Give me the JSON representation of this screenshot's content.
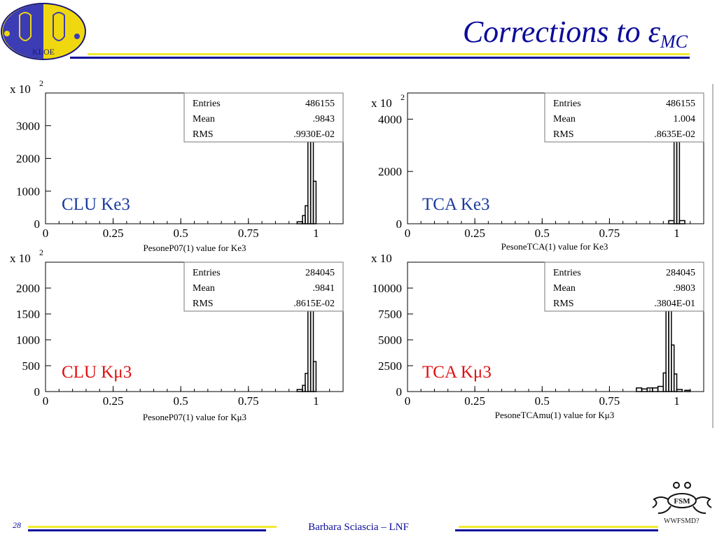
{
  "slide": {
    "title_main": "Corrections to ",
    "title_symbol": "ε",
    "title_sub": "MC",
    "author": "Barbara Sciascia – LNF",
    "page_number": "28",
    "fsm_badge": "WWFSMD?",
    "fsm_logo_text": "FSM",
    "logo_text": "KLOE"
  },
  "colors": {
    "title": "#0b0b9a",
    "ke3_label": "#1a3aa0",
    "kmu3_label": "#e01010"
  },
  "chart_data": [
    {
      "type": "histogram",
      "panel_label": "CLU Ke3",
      "xlabel": "PesoneP07(1) value for Ke3",
      "ylabel": "",
      "scale_label": "x 10",
      "scale_exp": "2",
      "xlim": [
        0,
        1.1
      ],
      "ylim": [
        0,
        4000
      ],
      "xticks": [
        0,
        0.25,
        0.5,
        0.75,
        1
      ],
      "xtick_labels": [
        "0",
        "0.25",
        "0.5",
        "0.75",
        "1"
      ],
      "yticks": [
        0,
        1000,
        2000,
        3000
      ],
      "ytick_labels": [
        "0",
        "1000",
        "2000",
        "3000"
      ],
      "bins": [
        [
          0.93,
          0.95,
          60
        ],
        [
          0.95,
          0.96,
          250
        ],
        [
          0.96,
          0.97,
          550
        ],
        [
          0.97,
          0.98,
          2550
        ],
        [
          0.98,
          0.99,
          2600
        ],
        [
          0.99,
          1.0,
          1300
        ]
      ],
      "stats": [
        [
          "Entries",
          "486155"
        ],
        [
          "Mean",
          ".9843"
        ],
        [
          "RMS",
          ".9930E-02"
        ]
      ]
    },
    {
      "type": "histogram",
      "panel_label": "TCA Ke3",
      "xlabel": "PesoneTCA(1) value for Ke3",
      "ylabel": "",
      "scale_label": "x 10",
      "scale_exp": "2",
      "xlim": [
        0,
        1.1
      ],
      "ylim": [
        0,
        5000
      ],
      "xticks": [
        0,
        0.25,
        0.5,
        0.75,
        1
      ],
      "xtick_labels": [
        "0",
        "0.25",
        "0.5",
        "0.75",
        "1"
      ],
      "yticks": [
        0,
        2000,
        4000
      ],
      "ytick_labels": [
        "0",
        "2000",
        "4000"
      ],
      "bins": [
        [
          0.97,
          0.99,
          120
        ],
        [
          0.99,
          1.0,
          3900
        ],
        [
          1.0,
          1.01,
          3900
        ],
        [
          1.01,
          1.03,
          120
        ]
      ],
      "stats": [
        [
          "Entries",
          "486155"
        ],
        [
          "Mean",
          "1.004"
        ],
        [
          "RMS",
          ".8635E-02"
        ]
      ]
    },
    {
      "type": "histogram",
      "panel_label": "CLU Kμ3",
      "xlabel": "PesoneP07(1) value for Kμ3",
      "ylabel": "",
      "scale_label": "x 10",
      "scale_exp": "2",
      "xlim": [
        0,
        1.1
      ],
      "ylim": [
        0,
        2500
      ],
      "xticks": [
        0,
        0.25,
        0.5,
        0.75,
        1
      ],
      "xtick_labels": [
        "0",
        "0.25",
        "0.5",
        "0.75",
        "1"
      ],
      "yticks": [
        0,
        500,
        1000,
        1500,
        2000
      ],
      "ytick_labels": [
        "0",
        "500",
        "1000",
        "1500",
        "2000"
      ],
      "bins": [
        [
          0.93,
          0.95,
          40
        ],
        [
          0.95,
          0.96,
          120
        ],
        [
          0.96,
          0.97,
          350
        ],
        [
          0.97,
          0.98,
          1650
        ],
        [
          0.98,
          0.99,
          1700
        ],
        [
          0.99,
          1.0,
          580
        ]
      ],
      "stats": [
        [
          "Entries",
          "284045"
        ],
        [
          "Mean",
          ".9841"
        ],
        [
          "RMS",
          ".8615E-02"
        ]
      ]
    },
    {
      "type": "histogram",
      "panel_label": "TCA Kμ3",
      "xlabel": "PesoneTCAmu(1) value for Kμ3",
      "ylabel": "",
      "scale_label": "x 10",
      "scale_exp": "",
      "xlim": [
        0,
        1.1
      ],
      "ylim": [
        0,
        12500
      ],
      "xticks": [
        0,
        0.25,
        0.5,
        0.75,
        1
      ],
      "xtick_labels": [
        "0",
        "0.25",
        "0.5",
        "0.75",
        "1"
      ],
      "yticks": [
        0,
        2500,
        5000,
        7500,
        10000
      ],
      "ytick_labels": [
        "0",
        "2500",
        "5000",
        "7500",
        "10000"
      ],
      "bins": [
        [
          0.85,
          0.87,
          350
        ],
        [
          0.87,
          0.89,
          250
        ],
        [
          0.89,
          0.91,
          350
        ],
        [
          0.91,
          0.93,
          350
        ],
        [
          0.93,
          0.95,
          500
        ],
        [
          0.95,
          0.96,
          1800
        ],
        [
          0.96,
          0.97,
          8000
        ],
        [
          0.97,
          0.98,
          8500
        ],
        [
          0.98,
          0.99,
          4500
        ],
        [
          0.99,
          1.0,
          1700
        ],
        [
          1.0,
          1.02,
          200
        ],
        [
          1.03,
          1.05,
          120
        ]
      ],
      "stats": [
        [
          "Entries",
          "284045"
        ],
        [
          "Mean",
          ".9803"
        ],
        [
          "RMS",
          ".3804E-01"
        ]
      ]
    }
  ]
}
